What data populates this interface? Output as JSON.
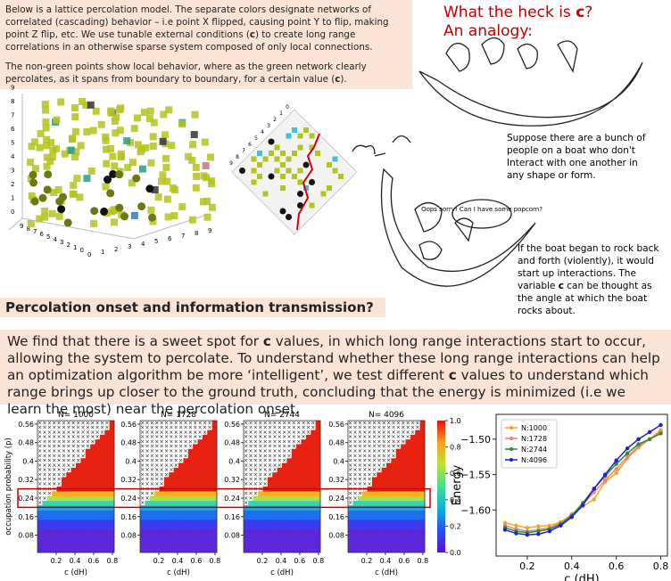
{
  "intro": {
    "paragraph1": [
      "Below is a lattice percolation model. The separate colors designate networks of correlated (cascading) behavior – i.e point X flipped, causing point Y to flip, making point Z flip, etc.  We use tunable external conditions (",
      "c",
      ") to create long range correlations in an otherwise sparse system composed of only local connections."
    ],
    "paragraph2": [
      "The non-green points show local behavior, where as the green network clearly percolates, as it spans from boundary to boundary, for a certain value (",
      "c",
      ")."
    ]
  },
  "analogy": {
    "title": [
      "What the heck is ",
      "c",
      "? An analogy:"
    ],
    "caption1": "Suppose there are a bunch of people on a boat who don't Interact with one another in any shape or form.",
    "bubble": "Oops sorry! Can I have some popcorn?",
    "caption2": [
      "If the boat began to rock back and forth (violently), it would start up interactions. The variable ",
      "c",
      " can be thought as the angle at which the boat rocks about."
    ]
  },
  "lattice_3d": {
    "zticks": [
      0,
      1,
      2,
      3,
      4,
      5,
      6,
      7,
      8,
      9
    ],
    "xticks": [
      0,
      1,
      2,
      3,
      4,
      5,
      6,
      7,
      8,
      9
    ],
    "depth_ticks": [
      9,
      8,
      7,
      6,
      5,
      4,
      3,
      2,
      1,
      0
    ]
  },
  "section": {
    "heading": "Percolation onset and information transmission?",
    "body": [
      "We find that there is a sweet spot for ",
      "c",
      " values,  in which long range interactions start to occur, allowing the system to percolate. To understand whether these long range interactions can help an optimization algorithm be more ‘intelligent’, we test different ",
      "c",
      " values to understand which range brings up closer to the ground truth, concluding that the energy is minimized (i.e we learn the most) near the percolation onset."
    ]
  },
  "heatmaps": {
    "titles": [
      "N= 1000",
      "N= 1728",
      "N= 2744",
      "N= 4096"
    ],
    "ylabel": "occupation probability (p)",
    "xlabel": "c (dH)",
    "ylim": [
      0.005,
      0.575
    ],
    "yticks": [
      0.08,
      0.16,
      0.24,
      0.32,
      0.4,
      0.48,
      0.56
    ],
    "xlim": [
      0,
      0.82
    ],
    "xticks": [
      0.2,
      0.4,
      0.6,
      0.8
    ],
    "colorbar_lim": [
      0,
      1
    ],
    "colorbar_ticks": [
      {
        "value": 0,
        "label": "0.0"
      },
      0.2,
      0.4,
      0.6,
      0.8,
      {
        "value": 1,
        "label": "1.0"
      }
    ]
  },
  "chart_data": {
    "type": "line",
    "ylabel": "Energy",
    "xlabel": "c (dH)",
    "x": [
      0.1,
      0.15,
      0.2,
      0.25,
      0.3,
      0.35,
      0.4,
      0.45,
      0.5,
      0.55,
      0.6,
      0.65,
      0.7,
      0.75,
      0.8
    ],
    "xlim": [
      0.06,
      0.83
    ],
    "xticks": [
      0.2,
      0.4,
      0.6,
      0.8
    ],
    "ylim": [
      -1.665,
      -1.465
    ],
    "yticks": [
      {
        "value": -1.6,
        "label": "−1.60"
      },
      {
        "value": -1.55,
        "label": "−1.55"
      },
      {
        "value": -1.5,
        "label": "−1.50"
      }
    ],
    "legend": "upper left",
    "series": [
      {
        "name": "N:1000",
        "color": "#f5a623",
        "values": [
          -1.618,
          -1.622,
          -1.625,
          -1.623,
          -1.622,
          -1.617,
          -1.607,
          -1.595,
          -1.585,
          -1.56,
          -1.548,
          -1.527,
          -1.512,
          -1.5,
          -1.487
        ]
      },
      {
        "name": "N:1728",
        "color": "#f08080",
        "values": [
          -1.622,
          -1.627,
          -1.63,
          -1.628,
          -1.625,
          -1.618,
          -1.606,
          -1.592,
          -1.575,
          -1.558,
          -1.542,
          -1.525,
          -1.51,
          -1.5,
          -1.49
        ]
      },
      {
        "name": "N:2744",
        "color": "#2e8b2e",
        "values": [
          -1.625,
          -1.63,
          -1.632,
          -1.63,
          -1.627,
          -1.62,
          -1.608,
          -1.59,
          -1.57,
          -1.552,
          -1.535,
          -1.52,
          -1.507,
          -1.5,
          -1.492
        ]
      },
      {
        "name": "N:4096",
        "color": "#1f1fd0",
        "values": [
          -1.628,
          -1.633,
          -1.635,
          -1.634,
          -1.63,
          -1.622,
          -1.61,
          -1.593,
          -1.57,
          -1.55,
          -1.53,
          -1.513,
          -1.5,
          -1.49,
          -1.48
        ]
      }
    ]
  }
}
